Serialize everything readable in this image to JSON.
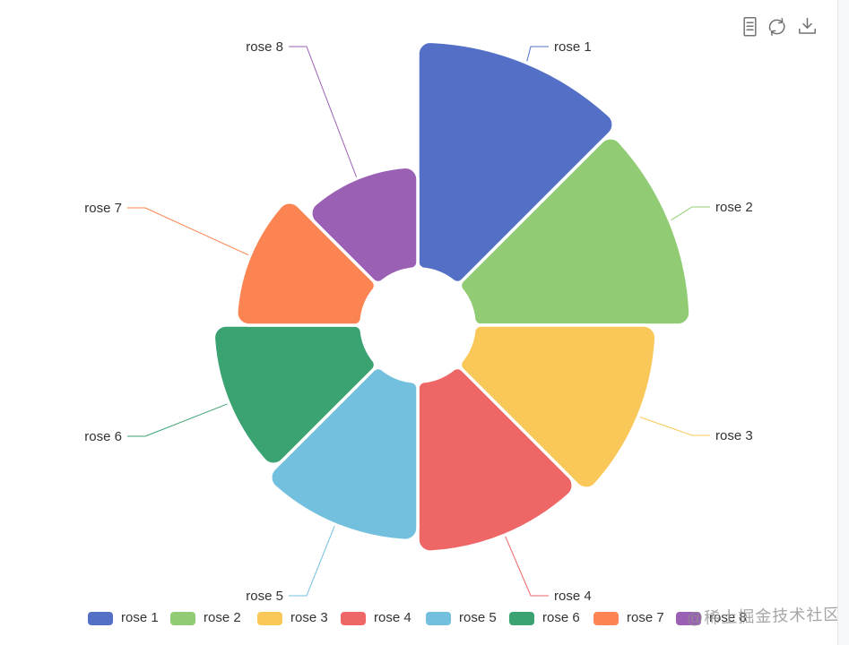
{
  "chart_data": {
    "type": "pie",
    "variant": "nightingale-rose",
    "rose_type": "area",
    "title": "",
    "legend_position": "bottom",
    "items": [
      {
        "name": "rose 1",
        "value": 40,
        "color": "#5470c6"
      },
      {
        "name": "rose 2",
        "value": 38,
        "color": "#91cc75"
      },
      {
        "name": "rose 3",
        "value": 32,
        "color": "#fac858"
      },
      {
        "name": "rose 4",
        "value": 30,
        "color": "#ee6666"
      },
      {
        "name": "rose 5",
        "value": 28,
        "color": "#73c0de"
      },
      {
        "name": "rose 6",
        "value": 26,
        "color": "#3ba272"
      },
      {
        "name": "rose 7",
        "value": 22,
        "color": "#fc8452"
      },
      {
        "name": "rose 8",
        "value": 18,
        "color": "#9a60b4"
      }
    ],
    "value_range": [
      0,
      40
    ]
  },
  "toolbar": {
    "icons": [
      {
        "name": "data-view"
      },
      {
        "name": "restore"
      },
      {
        "name": "save-as-image"
      }
    ]
  },
  "watermark": {
    "text": "@稀土掘金技术社区"
  }
}
